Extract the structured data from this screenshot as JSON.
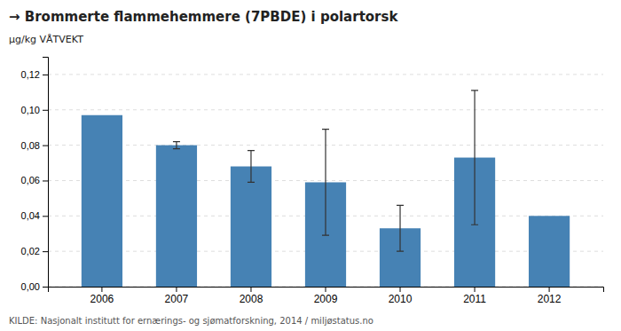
{
  "chart_data": {
    "type": "bar",
    "title": "→ Brommerte flammehemmere (7PBDE) i polartorsk",
    "ylabel": "μg/kg VÅTVEKT",
    "source": "KILDE: Nasjonalt institutt for ernærings- og sjømatforskning, 2014 / miljøstatus.no",
    "categories": [
      "2006",
      "2007",
      "2008",
      "2009",
      "2010",
      "2011",
      "2012"
    ],
    "values": [
      0.097,
      0.08,
      0.068,
      0.059,
      0.033,
      0.073,
      0.04
    ],
    "errors_upper": [
      0.0,
      0.002,
      0.009,
      0.03,
      0.013,
      0.038,
      0.0
    ],
    "errors_lower": [
      0.0,
      0.002,
      0.009,
      0.03,
      0.013,
      0.038,
      0.0
    ],
    "color": "#4682b4",
    "ylim": [
      0,
      0.13
    ],
    "yticks": [
      {
        "value": 0.0,
        "label": "0,00"
      },
      {
        "value": 0.02,
        "label": "0,02"
      },
      {
        "value": 0.04,
        "label": "0,04"
      },
      {
        "value": 0.06,
        "label": "0,06"
      },
      {
        "value": 0.08,
        "label": "0,08"
      },
      {
        "value": 0.1,
        "label": "0,10"
      },
      {
        "value": 0.12,
        "label": "0,12"
      }
    ],
    "grid": true
  }
}
